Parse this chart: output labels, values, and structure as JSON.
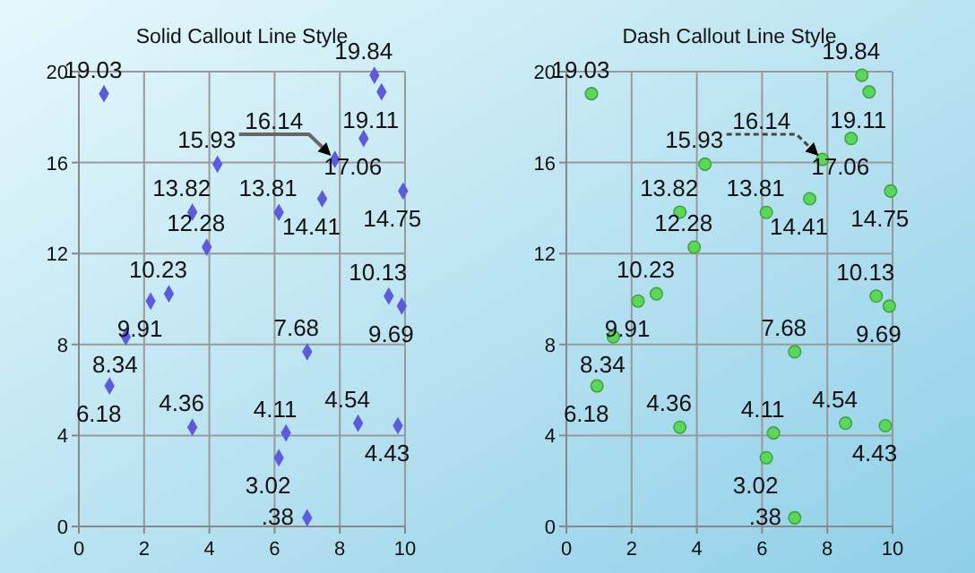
{
  "chart_data": [
    {
      "type": "scatter",
      "title": "Solid Callout Line Style",
      "marker": "diamond",
      "line_style": "solid",
      "grid": true,
      "xlim": [
        0,
        10
      ],
      "xticks": [
        0,
        2,
        4,
        6,
        8,
        10
      ],
      "ylim": [
        0,
        20
      ],
      "yticks": [
        0,
        4,
        8,
        12,
        16,
        20
      ],
      "series": [
        {
          "color": "#5b5bdc",
          "x": [
            0.77,
            9.06,
            9.28,
            8.73,
            7.85,
            4.25,
            9.94,
            7.46,
            3.48,
            6.13,
            3.92,
            2.76,
            2.2,
            9.5,
            9.9,
            1.44,
            0.94,
            7.0,
            3.48,
            6.35,
            8.56,
            9.78,
            6.13,
            7.0
          ],
          "values": [
            19.03,
            19.84,
            19.11,
            17.06,
            16.14,
            15.93,
            14.75,
            14.41,
            13.82,
            13.81,
            12.28,
            10.23,
            9.91,
            10.13,
            9.69,
            8.34,
            6.18,
            7.68,
            4.36,
            4.11,
            4.54,
            4.43,
            3.02,
            0.38
          ],
          "value_labels": [
            "19.03",
            "19.84",
            "19.11",
            "17.06",
            null,
            "15.93",
            "14.75",
            "14.41",
            "13.82",
            "13.81",
            "12.28",
            "10.23",
            "9.91",
            "10.13",
            "9.69",
            "8.34",
            "6.18",
            "7.68",
            "4.36",
            "4.11",
            "4.54",
            "4.43",
            "3.02",
            ".38"
          ]
        }
      ],
      "annotations": [
        {
          "text": "16.14",
          "x": 7.85,
          "y": 16.14
        }
      ]
    },
    {
      "type": "scatter",
      "title": "Dash Callout Line Style",
      "marker": "circle",
      "line_style": "dashed",
      "grid": true,
      "xlim": [
        0,
        10
      ],
      "xticks": [
        0,
        2,
        4,
        6,
        8,
        10
      ],
      "ylim": [
        0,
        20
      ],
      "yticks": [
        0,
        4,
        8,
        12,
        16,
        20
      ],
      "series": [
        {
          "color": "#5ad85a",
          "x": [
            0.77,
            9.06,
            9.28,
            8.73,
            7.85,
            4.25,
            9.94,
            7.46,
            3.48,
            6.13,
            3.92,
            2.76,
            2.2,
            9.5,
            9.9,
            1.44,
            0.94,
            7.0,
            3.48,
            6.35,
            8.56,
            9.78,
            6.13,
            7.0
          ],
          "values": [
            19.03,
            19.84,
            19.11,
            17.06,
            16.14,
            15.93,
            14.75,
            14.41,
            13.82,
            13.81,
            12.28,
            10.23,
            9.91,
            10.13,
            9.69,
            8.34,
            6.18,
            7.68,
            4.36,
            4.11,
            4.54,
            4.43,
            3.02,
            0.38
          ],
          "value_labels": [
            "19.03",
            "19.84",
            "19.11",
            "17.06",
            null,
            "15.93",
            "14.75",
            "14.41",
            "13.82",
            "13.81",
            "12.28",
            "10.23",
            "9.91",
            "10.13",
            "9.69",
            "8.34",
            "6.18",
            "7.68",
            "4.36",
            "4.11",
            "4.54",
            "4.43",
            "3.02",
            ".38"
          ]
        }
      ],
      "annotations": [
        {
          "text": "16.14",
          "x": 7.85,
          "y": 16.14
        }
      ]
    }
  ]
}
